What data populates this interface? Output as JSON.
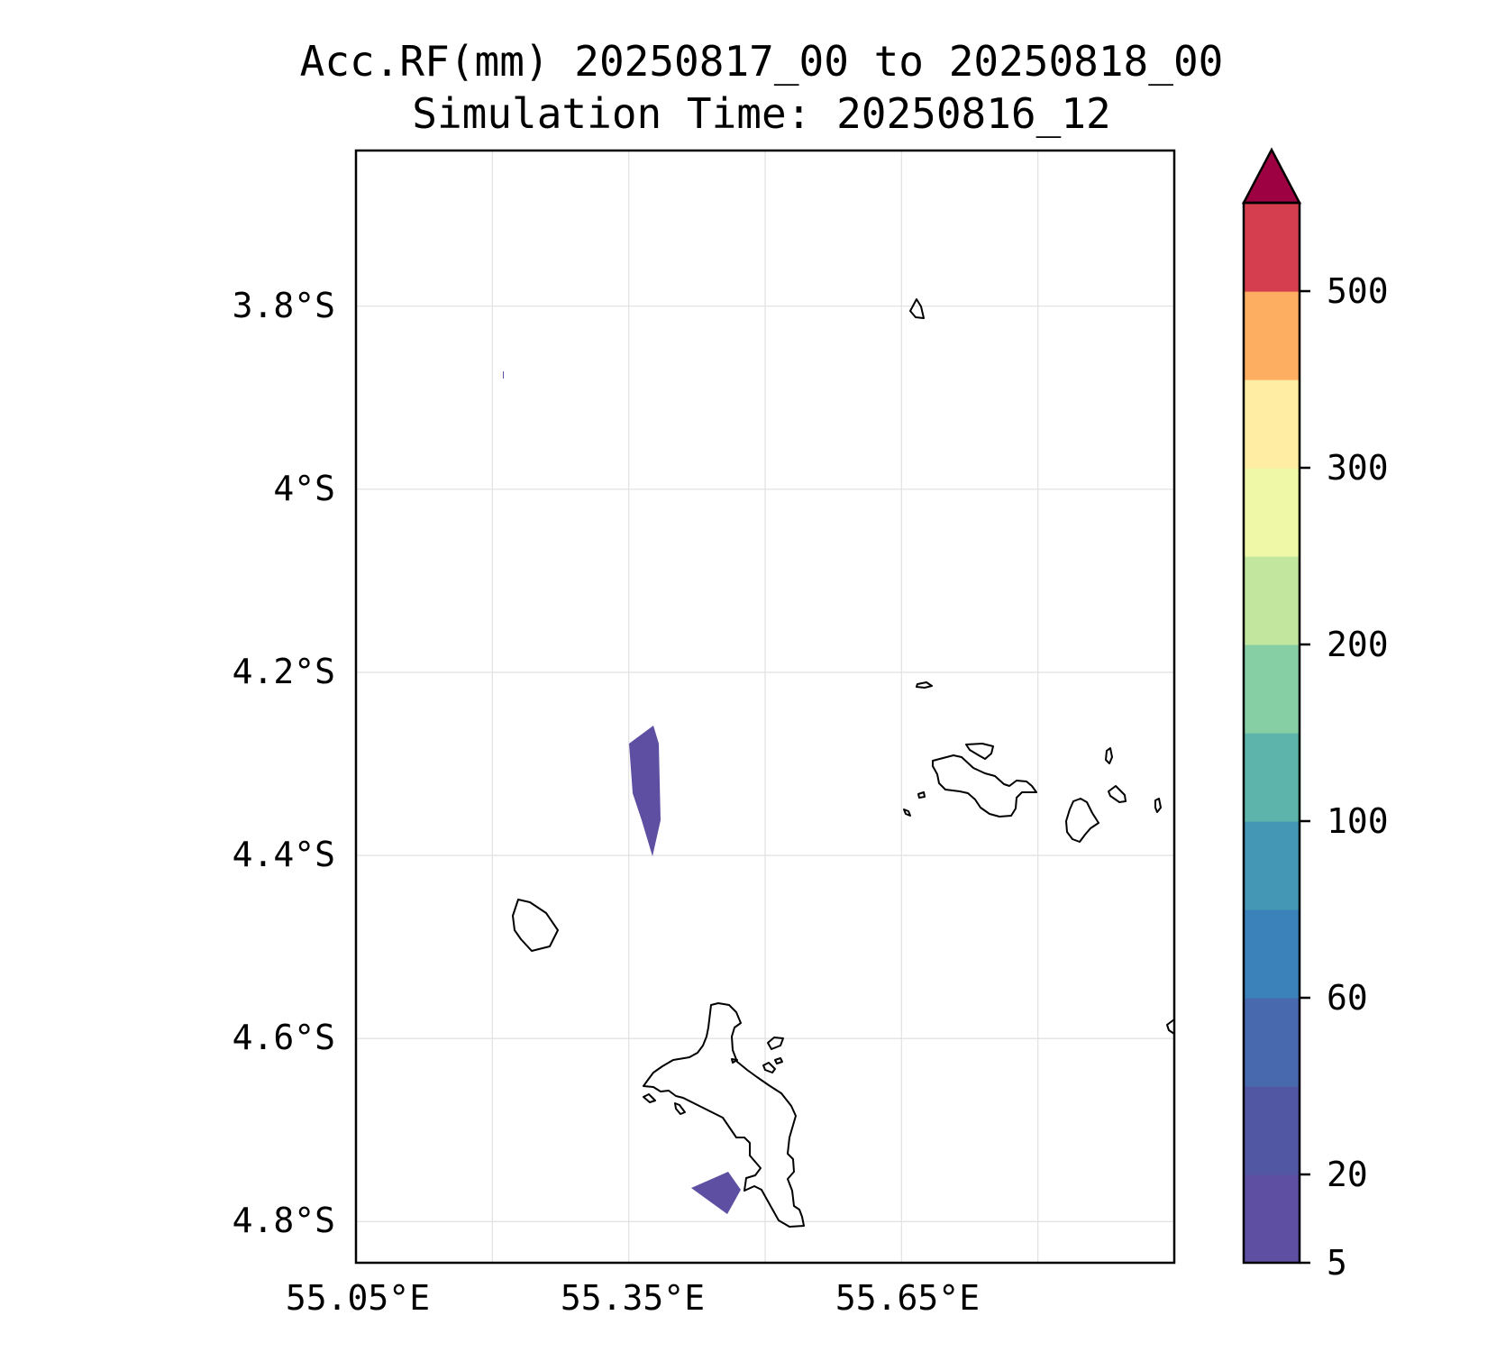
{
  "title": {
    "line1": "Acc.RF(mm) 20250817_00 to 20250818_00",
    "line2": "Simulation Time: 20250816_12"
  },
  "map": {
    "lon_range": [
      55.05,
      55.95
    ],
    "lat_range": [
      -4.845,
      -3.63
    ],
    "x_ticks": [
      {
        "value": 55.05,
        "label": "55.05°E"
      },
      {
        "value": 55.35,
        "label": "55.35°E"
      },
      {
        "value": 55.65,
        "label": "55.65°E"
      }
    ],
    "x_grid": [
      55.2,
      55.35,
      55.5,
      55.65,
      55.8
    ],
    "y_ticks": [
      {
        "value": -3.8,
        "label": "3.8°S"
      },
      {
        "value": -4.0,
        "label": "4°S"
      },
      {
        "value": -4.2,
        "label": "4.2°S"
      },
      {
        "value": -4.4,
        "label": "4.4°S"
      },
      {
        "value": -4.6,
        "label": "4.6°S"
      },
      {
        "value": -4.8,
        "label": "4.8°S"
      }
    ],
    "grid": true
  },
  "colorbar": {
    "tick_labels": [
      {
        "level": 0,
        "label": "5"
      },
      {
        "level": 1,
        "label": "20"
      },
      {
        "level": 3,
        "label": "60"
      },
      {
        "level": 5,
        "label": "100"
      },
      {
        "level": 7,
        "label": "200"
      },
      {
        "level": 9,
        "label": "300"
      },
      {
        "level": 11,
        "label": "500"
      }
    ],
    "colors": [
      "#5e4fa2",
      "#5257a4",
      "#4869ad",
      "#3b82bb",
      "#4497b5",
      "#5db4ab",
      "#86cfa5",
      "#c3e69f",
      "#eef8a6",
      "#feeda2",
      "#fdae61",
      "#d53e4f"
    ],
    "extend_color": "#9e0142",
    "extend": "max"
  },
  "rainfall_color": "#5e4fa2"
}
